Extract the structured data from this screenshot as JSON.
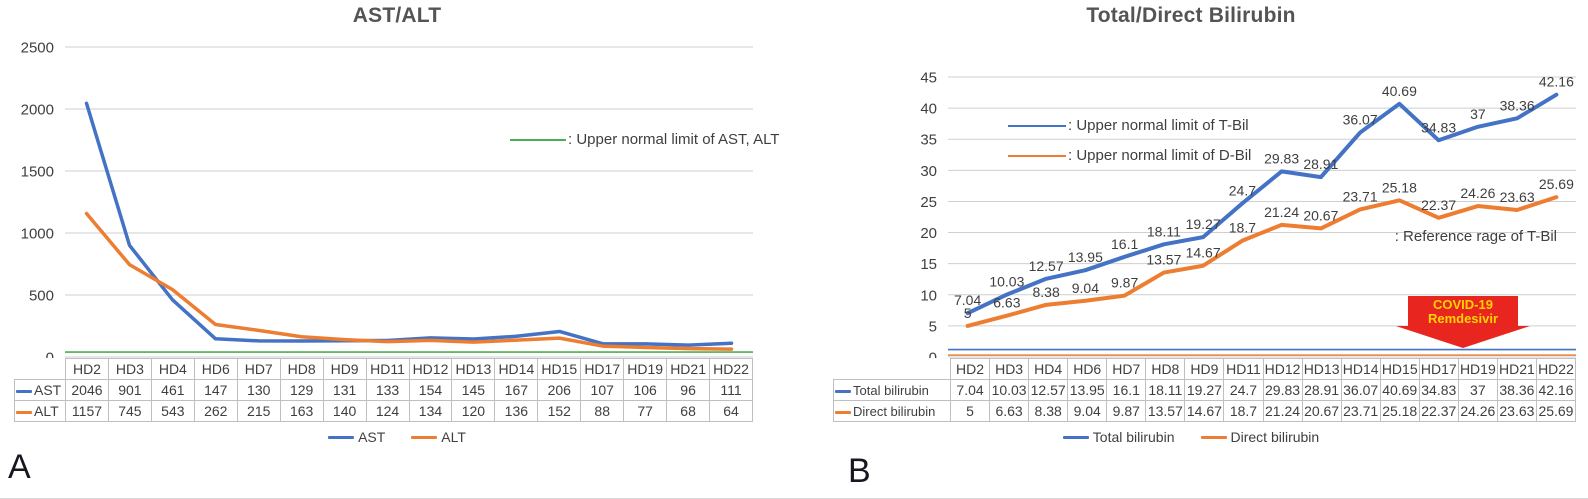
{
  "colors": {
    "blue": "#4472C4",
    "orange": "#ED7D31",
    "green": "#4BAE4F",
    "grid": "#cfcfcf",
    "text": "#3f3f3f",
    "arrow_red": "#E8251F",
    "arrow_yellow": "#FFD400"
  },
  "panel_a": {
    "letter": "A"
  },
  "panel_b": {
    "letter": "B"
  },
  "chart_data": [
    {
      "type": "line",
      "title": "AST/ALT",
      "categories": [
        "HD2",
        "HD3",
        "HD4",
        "HD6",
        "HD7",
        "HD8",
        "HD9",
        "HD11",
        "HD12",
        "HD13",
        "HD14",
        "HD15",
        "HD17",
        "HD19",
        "HD21",
        "HD22"
      ],
      "series": [
        {
          "name": "AST",
          "color": "blue",
          "values": [
            2046,
            901,
            461,
            147,
            130,
            129,
            131,
            133,
            154,
            145,
            167,
            206,
            107,
            106,
            96,
            111
          ]
        },
        {
          "name": "ALT",
          "color": "orange",
          "values": [
            1157,
            745,
            543,
            262,
            215,
            163,
            140,
            124,
            134,
            120,
            136,
            152,
            88,
            77,
            68,
            64
          ]
        }
      ],
      "ylim": [
        0,
        2500
      ],
      "ytick_step": 500,
      "grid": true,
      "show_point_labels": false,
      "ref_lines": [
        {
          "label": ": Upper normal limit of AST, ALT",
          "value": 40,
          "color": "green"
        }
      ],
      "legend_position": "bottom"
    },
    {
      "type": "line",
      "title": "Total/Direct Bilirubin",
      "categories": [
        "HD2",
        "HD3",
        "HD4",
        "HD6",
        "HD7",
        "HD8",
        "HD9",
        "HD11",
        "HD12",
        "HD13",
        "HD14",
        "HD15",
        "HD17",
        "HD19",
        "HD21",
        "HD22"
      ],
      "series": [
        {
          "name": "Total bilirubin",
          "color": "blue",
          "values": [
            7.04,
            10.03,
            12.57,
            13.95,
            16.1,
            18.11,
            19.27,
            24.7,
            29.83,
            28.91,
            36.07,
            40.69,
            34.83,
            37,
            38.36,
            42.16
          ]
        },
        {
          "name": "Direct bilirubin",
          "color": "orange",
          "values": [
            5,
            6.63,
            8.38,
            9.04,
            9.87,
            13.57,
            14.67,
            18.7,
            21.24,
            20.67,
            23.71,
            25.18,
            22.37,
            24.26,
            23.63,
            25.69
          ]
        }
      ],
      "ylim": [
        0,
        45
      ],
      "ytick_step": 5,
      "grid": true,
      "show_point_labels": true,
      "ref_lines": [
        {
          "label": ": Upper normal limit of T-Bil",
          "value": 1.2,
          "color": "blue"
        },
        {
          "label": ": Upper normal limit of D-Bil",
          "value": 0.3,
          "color": "orange"
        }
      ],
      "annotations": {
        "reference_note": ": Reference rage of T-Bil",
        "callout_line1": "COVID-19",
        "callout_line2": "Remdesivir"
      },
      "legend_position": "bottom"
    }
  ]
}
